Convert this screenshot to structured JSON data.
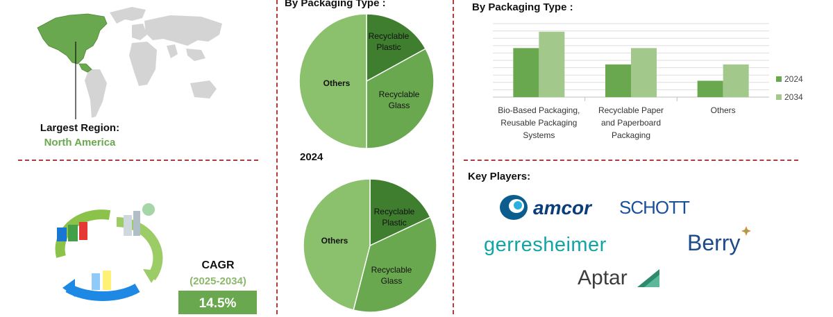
{
  "region": {
    "label": "Largest Region:",
    "value": "North America"
  },
  "cagr": {
    "label": "CAGR",
    "range": "(2025-2034)",
    "value": "14.5%"
  },
  "pie_section": {
    "title": "By Packaging Type :",
    "year_label": "2024"
  },
  "bar_section": {
    "title": "By Packaging Type :"
  },
  "key_players": {
    "title": "Key Players:",
    "logos": [
      "amcor",
      "SCHOTT",
      "gerresheimer",
      "Berry",
      "Aptar"
    ]
  },
  "colors": {
    "dark_green": "#3f7d2f",
    "mid_green": "#6aa84f",
    "light_green": "#a2c98b",
    "divider_red": "#b23a3a"
  },
  "chart_data": [
    {
      "type": "pie",
      "title": "",
      "slices": [
        {
          "label": "Recyclable Plastic",
          "value": 17,
          "color": "#3f7d2f"
        },
        {
          "label": "Recyclable Glass",
          "value": 33,
          "color": "#6aa84f"
        },
        {
          "label": "Others",
          "value": 50,
          "color": "#8bc06d"
        }
      ]
    },
    {
      "type": "pie",
      "title": "2024",
      "slices": [
        {
          "label": "Recyclable Plastic",
          "value": 18,
          "color": "#3f7d2f"
        },
        {
          "label": "Recyclable Glass",
          "value": 36,
          "color": "#6aa84f"
        },
        {
          "label": "Others",
          "value": 46,
          "color": "#8bc06d"
        }
      ]
    },
    {
      "type": "bar",
      "title": "By Packaging Type :",
      "categories": [
        [
          "Bio-Based Packaging,",
          "Reusable Packaging",
          "Systems"
        ],
        [
          "Recyclable Paper",
          "and Paperboard",
          "Packaging"
        ],
        [
          "Others"
        ]
      ],
      "series": [
        {
          "name": "2024",
          "values": [
            3,
            2,
            1
          ],
          "color": "#6aa84f"
        },
        {
          "name": "2034",
          "values": [
            4,
            3,
            2
          ],
          "color": "#a2c98b"
        }
      ],
      "ylim": [
        0,
        4.5
      ],
      "grid": true,
      "legend": "right"
    }
  ]
}
